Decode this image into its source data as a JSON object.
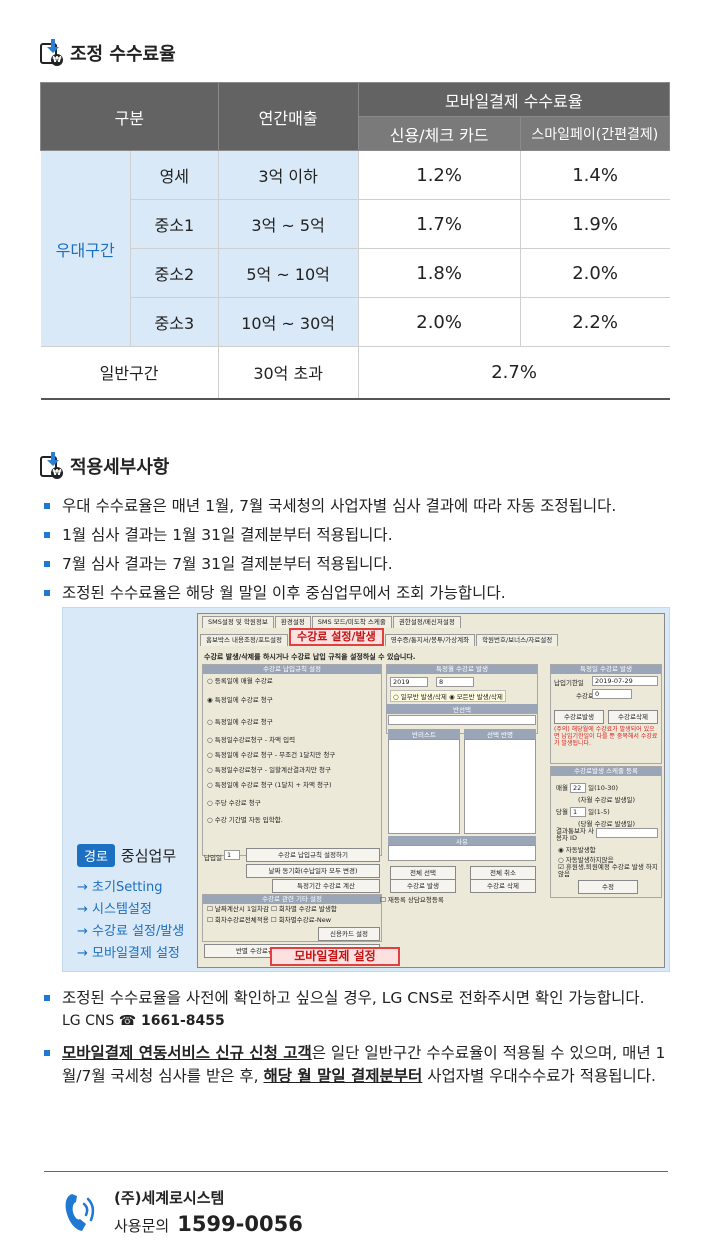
{
  "section1": {
    "title": "조정 수수료율"
  },
  "table": {
    "head_category": "구분",
    "head_sales": "연간매출",
    "head_mobile": "모바일결제 수수료율",
    "head_credit": "신용/체크 카드",
    "head_smile": "스마일페이(간편결제)",
    "group_preferential": "우대구간",
    "rows": [
      {
        "tier": "영세",
        "sales": "3억 이하",
        "credit": "1.2%",
        "smile": "1.4%"
      },
      {
        "tier": "중소1",
        "sales": "3억 ~ 5억",
        "credit": "1.7%",
        "smile": "1.9%"
      },
      {
        "tier": "중소2",
        "sales": "5억 ~ 10억",
        "credit": "1.8%",
        "smile": "2.0%"
      },
      {
        "tier": "중소3",
        "sales": "10억 ~ 30억",
        "credit": "2.0%",
        "smile": "2.2%"
      }
    ],
    "general": {
      "tier": "일반구간",
      "sales": "30억 초과",
      "rate": "2.7%"
    }
  },
  "section2": {
    "title": "적용세부사항"
  },
  "bullets": [
    "우대 수수료율은 매년 1월, 7월 국세청의 사업자별 심사 결과에 따라 자동 조정됩니다.",
    "1월 심사 결과는 1월 31일 결제분부터 적용됩니다.",
    "7월 심사 결과는 7월 31일 결제분부터 적용됩니다.",
    "조정된 수수료율은 해당 월 말일 이후 중심업무에서 조회 가능합니다."
  ],
  "route": {
    "tag": "경로",
    "head": "중심업무",
    "steps": [
      "→ 초기Setting",
      "→ 시스템설정",
      "→ 수강료 설정/발생",
      "→ 모바일결제 설정"
    ]
  },
  "screenshot": {
    "tabs_row1": [
      "SMS설정 및 학원정보",
      "환경설정",
      "SMS 모드/미도착 스케줄",
      "권한설정/메신저설정"
    ],
    "tabs_row2": [
      "홈보박스 내용조정/포트설정",
      "수강료 설정/발생",
      "영수증/통지서/봉투/가상계좌",
      "학원번호/보너스/자료설정"
    ],
    "message": "수강료 발생/삭제를 하시거나 수강료 납입 규칙을 설정하실 수 있습니다.",
    "left_caption": "수강료 납입규칙 설정",
    "left_options": [
      "등록일에 매월 수강료",
      "특정일에 수강료 청구",
      "특정일에 수강료 청구",
      "특정일수강료청구 - 차액 입력",
      "특정일에 수강료 청구 - 무조건 1달치만 청구",
      "특정일수강료청구 - 일할계산결과치만 청구",
      "특정일에 수강료 청구 (1달치 + 차액 청구)",
      "주당 수강료 청구",
      "수강 기간별 자동 입학함."
    ],
    "pay_day_label": "납입일",
    "pay_day_value": "1",
    "btn_rule": "수강료 납입규칙 설정하기",
    "btn_sync": "날짜 동기화(수납일자 모두 변경)",
    "btn_calc": "특정기간 수강료 계산",
    "etc_caption": "수강료 관련 기타 설정",
    "etc_options": [
      "날짜계산시 1일차감",
      "회차별 수강료 발생함",
      "회차수강료전체적용",
      "회차별수강료-New"
    ],
    "btn_card": "신용카드 설정",
    "btn_class": "반별 수강료규칙 설정/특정 수강료 만들기",
    "mid_caption": "특정월 수강료 발생",
    "year": "2019",
    "month": "8",
    "radio_partial": "일부반 발생/삭제",
    "radio_all": "모든반 발생/삭제",
    "class_select_caption": "반선택",
    "list1": "반리스트",
    "list2": "선택 반명",
    "reason": "사유",
    "btn_select_all": "전체 선택",
    "btn_cancel_all": "전체 취소",
    "btn_fee_gen": "수강료 발생",
    "btn_fee_del": "수강료 삭제",
    "re_register": "재등록 상담요청등록",
    "right_caption": "특정일 수강료 발생",
    "pay_date_label": "납입기한일",
    "pay_date_value": "2019-07-29",
    "fee_label": "수강료",
    "fee_value": "0",
    "btn_gen": "수강료발생",
    "btn_del": "수강료삭제",
    "warn": "(주의) 해당월에 수강료가 발생되어 있으면 납입기한일이 다를 뿐 중복해서 수강료가 발생됩니다.",
    "sched_caption": "수강료발생 스케줄 등록",
    "monthly_label": "매월",
    "monthly_value": "22",
    "monthly_range": "일(10-30)",
    "monthly_note": "(차월 수강료 발생일)",
    "same_month_label": "당월",
    "same_month_value": "1",
    "same_month_range": "일(1-5)",
    "same_month_note": "(당월 수강료 발생일)",
    "payer_label": "결과통보자 사용자 ID",
    "auto_on": "자동발생함",
    "auto_off": "자동발생하지않음",
    "vacation": "휴원생,퇴원예정 수강료 발생 하지 않음",
    "btn_modify": "수정",
    "mobile_button": "모바일결제 설정"
  },
  "note1": {
    "text": "조정된 수수료율을 사전에 확인하고 싶으실 경우, LG CNS로 전화주시면 확인 가능합니다.",
    "company": "LG CNS",
    "tel_symbol": "☎",
    "tel": "1661-8455"
  },
  "note2": {
    "bold1": "모바일결제 연동서비스 신규 신청 고객",
    "text1": "은 일단 일반구간 수수료율이 적용될 수 있으며, 매년 1월/7월 국세청 심사를 받은 후, ",
    "bold2": "해당 월 말일 결제분부터",
    "text2": " 사업자별 우대수수료가 적용됩니다."
  },
  "footer": {
    "company": "(주)세계로시스템",
    "inquiry": "사용문의",
    "phone": "1599-0056"
  },
  "colors": {
    "accent": "#1f78d1",
    "header_gray": "#636363",
    "pref_bg": "#d9e9f7",
    "highlight_red": "#e04040"
  }
}
